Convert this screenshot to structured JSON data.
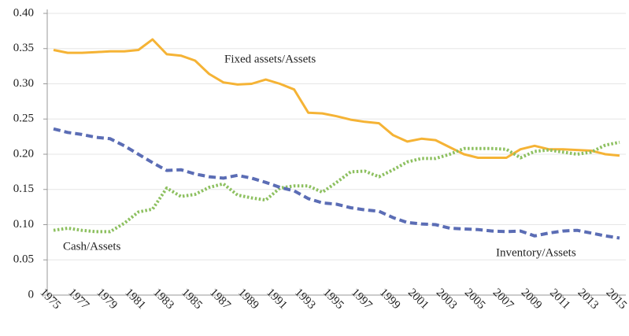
{
  "chart_data": {
    "type": "line",
    "categories": [
      "1975",
      null,
      "1977",
      null,
      "1979",
      null,
      "1981",
      null,
      "1983",
      null,
      "1985",
      null,
      "1987",
      null,
      "1989",
      null,
      "1991",
      null,
      "1993",
      null,
      "1995",
      null,
      "1997",
      null,
      "1999",
      null,
      "2001",
      null,
      "2003",
      null,
      "2005",
      null,
      "2007",
      null,
      "2009",
      null,
      "2011",
      null,
      "2013",
      null,
      "2015"
    ],
    "series": [
      {
        "name": "Fixed assets/Assets",
        "color": "#f5b335",
        "style": "solid",
        "values": [
          0.348,
          0.344,
          0.344,
          0.345,
          0.346,
          0.346,
          0.348,
          0.363,
          0.342,
          0.34,
          0.333,
          0.314,
          0.302,
          0.299,
          0.3,
          0.306,
          0.3,
          0.292,
          0.259,
          0.258,
          0.254,
          0.249,
          0.246,
          0.244,
          0.227,
          0.218,
          0.222,
          0.22,
          0.21,
          0.2,
          0.195,
          0.195,
          0.195,
          0.207,
          0.212,
          0.207,
          0.207,
          0.206,
          0.205,
          0.2,
          0.198
        ]
      },
      {
        "name": "Cash/Assets",
        "color": "#8dc060",
        "style": "dotted",
        "values": [
          0.092,
          0.095,
          0.092,
          0.09,
          0.09,
          0.102,
          0.118,
          0.122,
          0.152,
          0.14,
          0.143,
          0.153,
          0.158,
          0.142,
          0.138,
          0.135,
          0.152,
          0.155,
          0.155,
          0.146,
          0.16,
          0.175,
          0.176,
          0.168,
          0.178,
          0.189,
          0.194,
          0.194,
          0.2,
          0.208,
          0.208,
          0.208,
          0.207,
          0.195,
          0.204,
          0.206,
          0.203,
          0.2,
          0.203,
          0.213,
          0.217
        ]
      },
      {
        "name": "Inventory/Assets",
        "color": "#5b6db5",
        "style": "dashed",
        "values": [
          0.236,
          0.231,
          0.228,
          0.224,
          0.222,
          0.212,
          0.2,
          0.188,
          0.177,
          0.178,
          0.172,
          0.168,
          0.166,
          0.17,
          0.166,
          0.16,
          0.153,
          0.148,
          0.137,
          0.131,
          0.129,
          0.124,
          0.121,
          0.119,
          0.11,
          0.103,
          0.101,
          0.1,
          0.095,
          0.094,
          0.093,
          0.091,
          0.09,
          0.091,
          0.084,
          0.088,
          0.091,
          0.092,
          0.088,
          0.084,
          0.081
        ]
      }
    ],
    "ylim": [
      0,
      0.4
    ],
    "yticks": [
      0,
      0.05,
      {
        "value": 0.1,
        "label": "0.10"
      },
      0.15,
      {
        "value": 0.2,
        "label": "0.20"
      },
      0.25,
      {
        "value": 0.3,
        "label": "0.30"
      },
      0.35,
      {
        "value": 0.4,
        "label": "0.40"
      }
    ],
    "grid": true
  }
}
